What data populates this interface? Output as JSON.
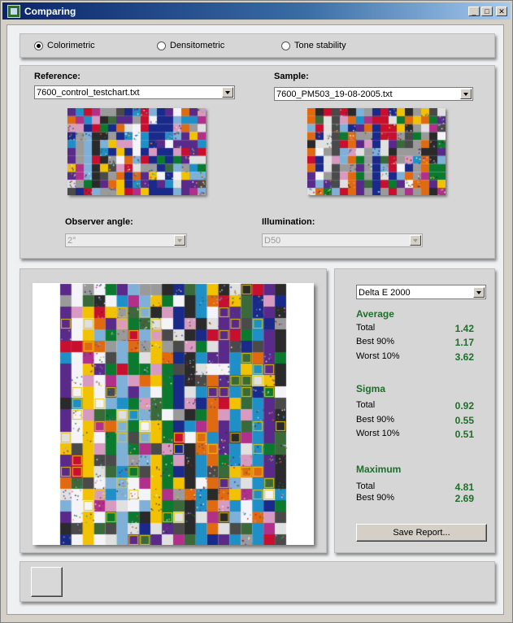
{
  "window": {
    "title": "Comparing",
    "min": "_",
    "max": "□",
    "close": "✕"
  },
  "modes": [
    {
      "label": "Colorimetric",
      "selected": true
    },
    {
      "label": "Densitometric",
      "selected": false
    },
    {
      "label": "Tone stability",
      "selected": false
    }
  ],
  "reference": {
    "label": "Reference:",
    "file": "7600_control_testchart.txt"
  },
  "sample": {
    "label": "Sample:",
    "file": "7600_PM503_19-08-2005.txt"
  },
  "observer": {
    "label": "Observer angle:",
    "value": "2°"
  },
  "illumination": {
    "label": "Illumination:",
    "value": "D50"
  },
  "metric": "Delta E 2000",
  "stats": {
    "average": {
      "title": "Average",
      "rows": [
        {
          "label": "Total",
          "value": "1.42"
        },
        {
          "label": "Best 90%",
          "value": "1.17"
        },
        {
          "label": "Worst 10%",
          "value": "3.62"
        }
      ]
    },
    "sigma": {
      "title": "Sigma",
      "rows": [
        {
          "label": "Total",
          "value": "0.92"
        },
        {
          "label": "Best 90%",
          "value": "0.55"
        },
        {
          "label": "Worst 10%",
          "value": "0.51"
        }
      ]
    },
    "maximum": {
      "title": "Maximum",
      "rows": [
        {
          "label": "Total",
          "value": "4.81"
        },
        {
          "label": "Best 90%",
          "value": "2.69"
        }
      ]
    }
  },
  "save_button": "Save Report..."
}
